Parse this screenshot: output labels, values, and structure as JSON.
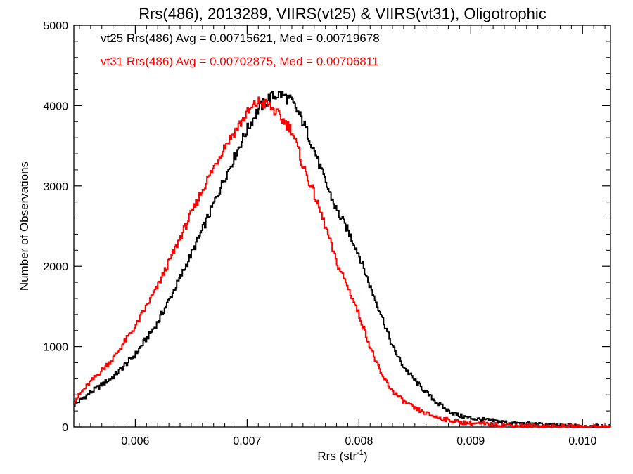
{
  "chart_data": {
    "type": "line",
    "title": "Rrs(486), 2013289, VIIRS(vt25) & VIIRS(vt31), Oligotrophic",
    "xlabel_main": "Rrs (str",
    "xlabel_sup": "-1",
    "xlabel_end": ")",
    "ylabel": "Number of Observations",
    "xlim": [
      0.00545,
      0.01025
    ],
    "ylim": [
      0,
      5000
    ],
    "x_ticks": [
      0.006,
      0.007,
      0.008,
      0.009,
      0.01
    ],
    "x_tick_labels": [
      "0.006",
      "0.007",
      "0.008",
      "0.009",
      "0.010"
    ],
    "y_ticks": [
      0,
      1000,
      2000,
      3000,
      4000,
      5000
    ],
    "y_tick_labels": [
      "0",
      "1000",
      "2000",
      "3000",
      "4000",
      "5000"
    ],
    "grid": false,
    "legend_position": "top-left",
    "series": [
      {
        "name": "vt25 Rrs(486) Avg = 0.00715621, Med = 0.00719678",
        "color": "#000000",
        "x": [
          0.00545,
          0.0056,
          0.0058,
          0.006,
          0.0062,
          0.0064,
          0.0066,
          0.0068,
          0.007,
          0.0071,
          0.0072,
          0.0073,
          0.0074,
          0.0075,
          0.0076,
          0.0077,
          0.0078,
          0.0079,
          0.008,
          0.0081,
          0.0082,
          0.0083,
          0.0084,
          0.0085,
          0.0086,
          0.0087,
          0.0088,
          0.0089,
          0.009,
          0.0092,
          0.0094,
          0.0096,
          0.0098,
          0.01,
          0.01025
        ],
        "values": [
          270,
          430,
          620,
          900,
          1300,
          1850,
          2450,
          3100,
          3700,
          3950,
          4100,
          4150,
          4050,
          3800,
          3450,
          3050,
          2700,
          2450,
          2150,
          1750,
          1400,
          1000,
          750,
          580,
          430,
          300,
          200,
          140,
          110,
          75,
          45,
          30,
          18,
          10,
          5
        ]
      },
      {
        "name": "vt31 Rrs(486) Avg = 0.00702875, Med = 0.00706811",
        "color": "#ff0000",
        "x": [
          0.00545,
          0.0056,
          0.0058,
          0.006,
          0.0062,
          0.0064,
          0.0066,
          0.0068,
          0.007,
          0.0071,
          0.0072,
          0.0073,
          0.0074,
          0.0075,
          0.0076,
          0.0077,
          0.0078,
          0.0079,
          0.008,
          0.0081,
          0.0082,
          0.0083,
          0.0084,
          0.0085,
          0.0086,
          0.0087,
          0.0088,
          0.0089,
          0.009,
          0.0092,
          0.0094,
          0.0096,
          0.0098,
          0.01,
          0.01025
        ],
        "values": [
          320,
          560,
          850,
          1250,
          1750,
          2350,
          2950,
          3500,
          3900,
          4050,
          4000,
          3850,
          3700,
          3250,
          2900,
          2500,
          2050,
          1750,
          1400,
          1000,
          650,
          450,
          320,
          230,
          170,
          120,
          85,
          60,
          45,
          30,
          20,
          12,
          8,
          5,
          3
        ]
      }
    ]
  }
}
